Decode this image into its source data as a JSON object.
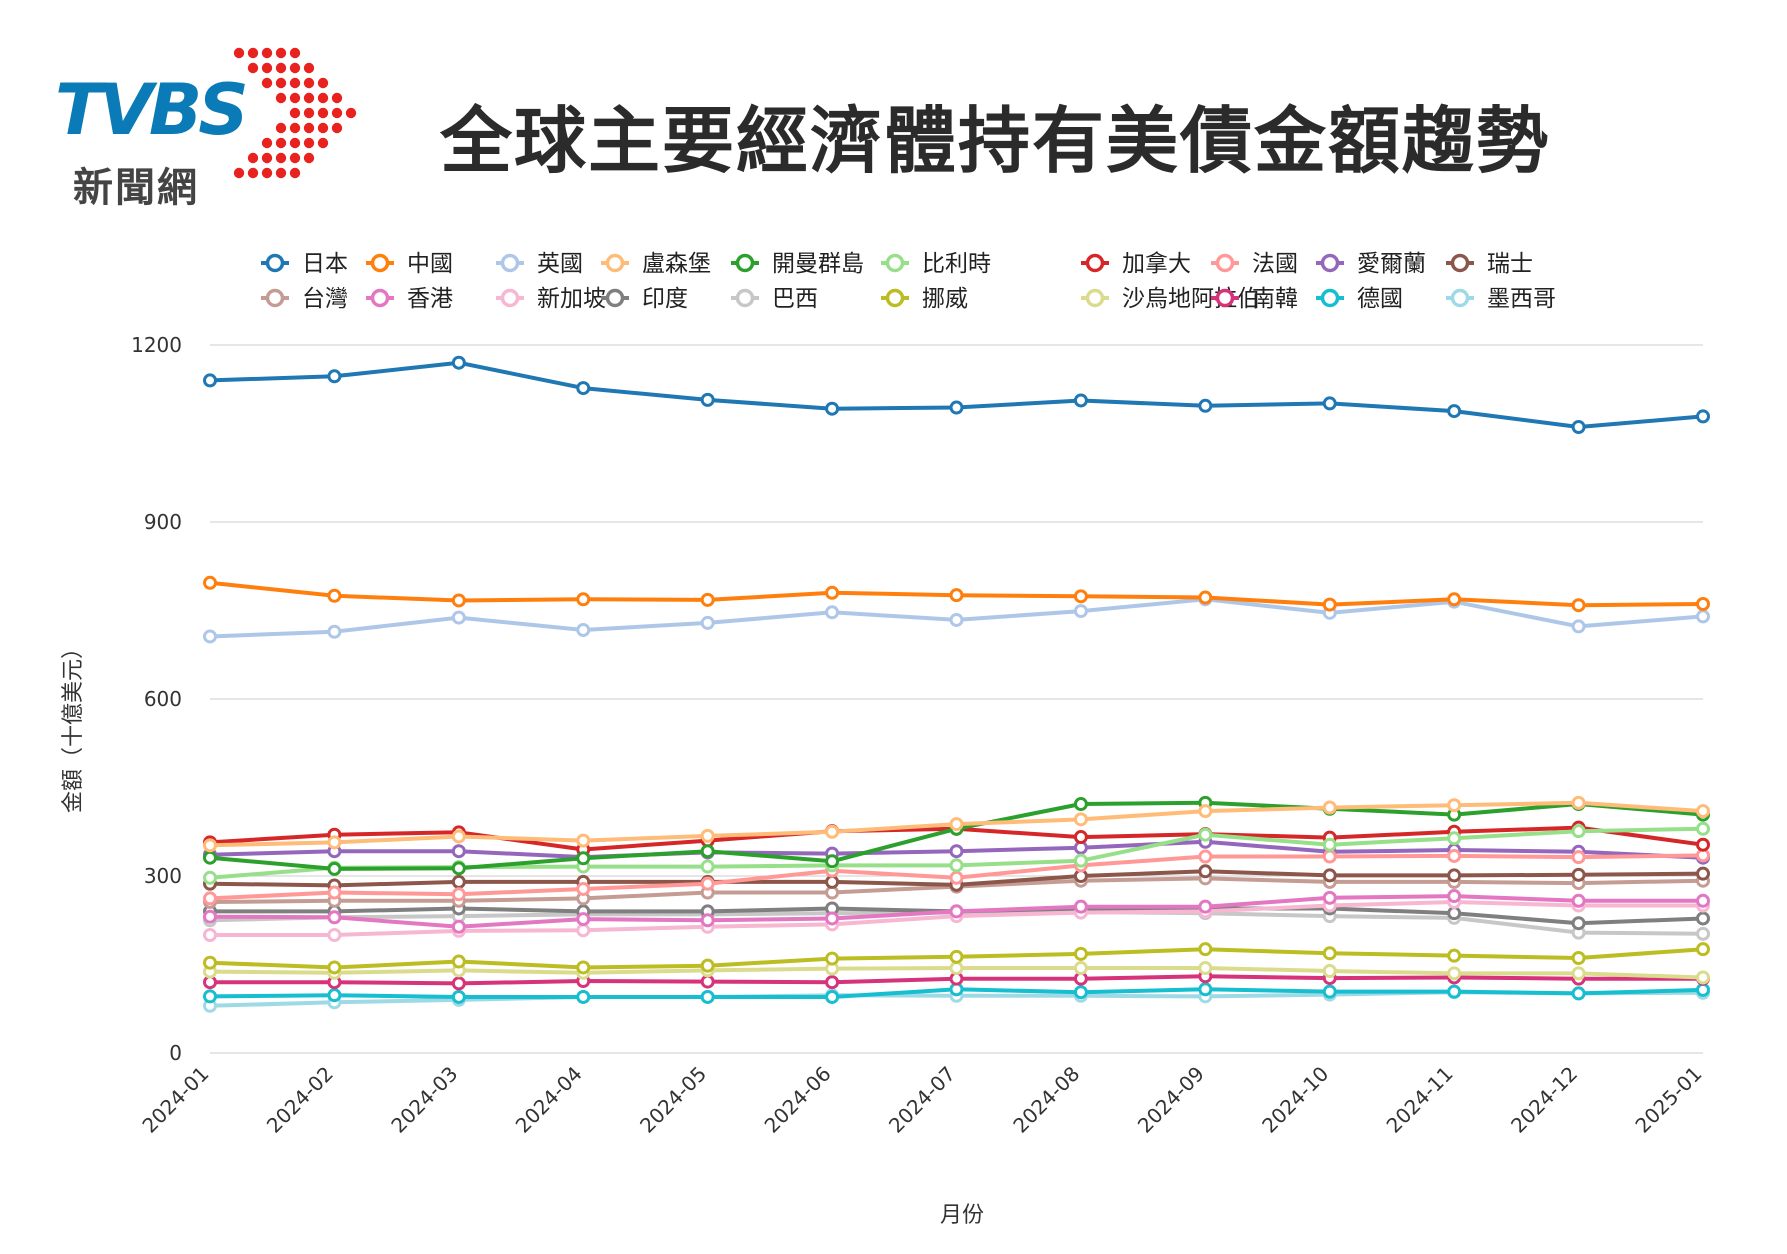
{
  "header": {
    "logo_text": "TVBS",
    "logo_subtext": "新聞網",
    "title": "全球主要經濟體持有美債金額趨勢"
  },
  "colors": {
    "logo_blue": "#0b7bb8",
    "logo_red": "#e8231f",
    "grid": "#cccccc"
  },
  "chart_data": {
    "type": "line",
    "title": "全球主要經濟體持有美債金額趨勢",
    "xlabel": "月份",
    "ylabel": "金額（十億美元）",
    "ylim": [
      0,
      1200
    ],
    "yticks": [
      0,
      300,
      600,
      900,
      1200
    ],
    "grid": "horizontal",
    "legend_position": "top",
    "x": [
      "2024-01",
      "2024-02",
      "2024-03",
      "2024-04",
      "2024-05",
      "2024-06",
      "2024-07",
      "2024-08",
      "2024-09",
      "2024-10",
      "2024-11",
      "2024-12",
      "2025-01"
    ],
    "series": [
      {
        "name": "日本",
        "color": "#1f77b4",
        "values": [
          1140,
          1147,
          1170,
          1127,
          1107,
          1092,
          1094,
          1106,
          1097,
          1101,
          1088,
          1061,
          1079
        ]
      },
      {
        "name": "中國",
        "color": "#ff7f0e",
        "values": [
          797,
          775,
          767,
          769,
          768,
          780,
          776,
          774,
          772,
          760,
          769,
          759,
          761
        ]
      },
      {
        "name": "英國",
        "color": "#aec7e8",
        "values": [
          706,
          714,
          738,
          717,
          729,
          747,
          734,
          749,
          769,
          746,
          765,
          723,
          740
        ]
      },
      {
        "name": "盧森堡",
        "color": "#ffbb78",
        "values": [
          352,
          357,
          367,
          360,
          368,
          375,
          388,
          396,
          410,
          416,
          420,
          424,
          410
        ]
      },
      {
        "name": "開曼群島",
        "color": "#2ca02c",
        "values": [
          331,
          312,
          313,
          330,
          342,
          325,
          380,
          422,
          424,
          414,
          404,
          422,
          404
        ]
      },
      {
        "name": "比利時",
        "color": "#98df8a",
        "values": [
          297,
          314,
          315,
          316,
          316,
          318,
          318,
          326,
          370,
          353,
          364,
          376,
          380
        ]
      },
      {
        "name": "加拿大",
        "color": "#d62728",
        "values": [
          357,
          370,
          374,
          345,
          360,
          376,
          380,
          366,
          371,
          365,
          375,
          382,
          353
        ]
      },
      {
        "name": "法國",
        "color": "#ff9896",
        "values": [
          262,
          272,
          269,
          278,
          287,
          309,
          297,
          318,
          333,
          333,
          334,
          332,
          335
        ]
      },
      {
        "name": "愛爾蘭",
        "color": "#9467bd",
        "values": [
          336,
          342,
          342,
          332,
          340,
          338,
          342,
          348,
          358,
          341,
          344,
          341,
          331
        ]
      },
      {
        "name": "瑞士",
        "color": "#8c564b",
        "values": [
          287,
          284,
          290,
          290,
          290,
          290,
          285,
          300,
          308,
          301,
          301,
          302,
          304
        ]
      },
      {
        "name": "台灣",
        "color": "#c49c94",
        "values": [
          256,
          258,
          258,
          262,
          272,
          272,
          282,
          292,
          296,
          290,
          290,
          288,
          292
        ]
      },
      {
        "name": "香港",
        "color": "#e377c2",
        "values": [
          231,
          230,
          214,
          227,
          225,
          228,
          240,
          248,
          248,
          263,
          266,
          258,
          258
        ]
      },
      {
        "name": "新加坡",
        "color": "#f7b6d2",
        "values": [
          200,
          200,
          207,
          208,
          214,
          218,
          232,
          238,
          240,
          250,
          256,
          250,
          250
        ]
      },
      {
        "name": "印度",
        "color": "#7f7f7f",
        "values": [
          240,
          240,
          245,
          240,
          240,
          245,
          240,
          245,
          245,
          245,
          237,
          220,
          228
        ]
      },
      {
        "name": "巴西",
        "color": "#c7c7c7",
        "values": [
          225,
          230,
          232,
          235,
          235,
          237,
          238,
          239,
          237,
          232,
          229,
          204,
          202
        ]
      },
      {
        "name": "挪威",
        "color": "#bcbd22",
        "values": [
          153,
          145,
          155,
          145,
          148,
          160,
          163,
          168,
          176,
          169,
          165,
          161,
          176
        ]
      },
      {
        "name": "沙烏地阿拉伯",
        "color": "#dbdb8d",
        "values": [
          138,
          136,
          140,
          136,
          140,
          143,
          144,
          144,
          144,
          139,
          135,
          135,
          128
        ]
      },
      {
        "name": "南韓",
        "color": "#d6337a",
        "values": [
          120,
          120,
          118,
          122,
          121,
          120,
          126,
          126,
          130,
          127,
          128,
          126,
          126
        ]
      },
      {
        "name": "德國",
        "color": "#17becf",
        "values": [
          96,
          98,
          95,
          95,
          95,
          95,
          108,
          103,
          108,
          104,
          104,
          101,
          107
        ]
      },
      {
        "name": "墨西哥",
        "color": "#9edae5",
        "values": [
          80,
          86,
          90,
          95,
          95,
          98,
          97,
          97,
          96,
          99,
          103,
          101,
          102
        ]
      }
    ]
  }
}
